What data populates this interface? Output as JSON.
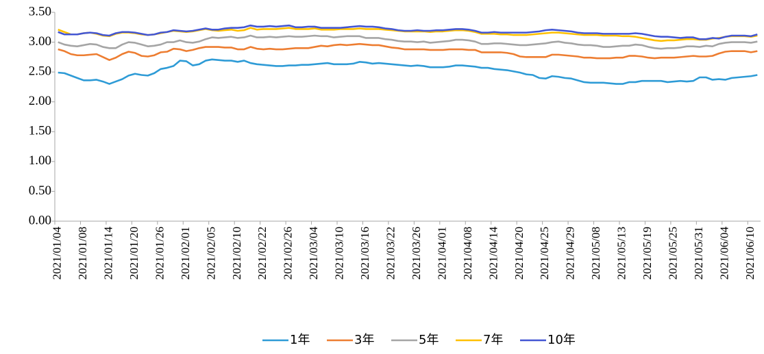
{
  "chart_data": {
    "type": "line",
    "categories": [
      "2021/01/04",
      null,
      null,
      null,
      "2021/01/08",
      null,
      null,
      null,
      "2021/01/14",
      null,
      null,
      null,
      "2021/01/20",
      null,
      null,
      null,
      "2021/01/26",
      null,
      null,
      null,
      "2021/02/01",
      null,
      null,
      null,
      "2021/02/05",
      null,
      null,
      null,
      "2021/02/10",
      null,
      null,
      null,
      "2021/02/22",
      null,
      null,
      null,
      "2021/02/26",
      null,
      null,
      null,
      "2021/03/04",
      null,
      null,
      null,
      "2021/03/10",
      null,
      null,
      null,
      "2021/03/16",
      null,
      null,
      null,
      "2021/03/22",
      null,
      null,
      null,
      "2021/03/26",
      null,
      null,
      null,
      "2021/04/01",
      null,
      null,
      null,
      "2021/04/08",
      null,
      null,
      null,
      "2021/04/14",
      null,
      null,
      null,
      "2021/04/20",
      null,
      null,
      null,
      "2021/04/25",
      null,
      null,
      null,
      "2021/04/29",
      null,
      null,
      null,
      "2021/05/08",
      null,
      null,
      null,
      "2021/05/13",
      null,
      null,
      null,
      "2021/05/19",
      null,
      null,
      null,
      "2021/05/25",
      null,
      null,
      null,
      "2021/05/31",
      null,
      null,
      null,
      "2021/06/04",
      null,
      null,
      null,
      "2021/06/10",
      null
    ],
    "series": [
      {
        "name": "1年",
        "color": "#2e9bd6",
        "values": [
          2.49,
          2.48,
          2.44,
          2.4,
          2.36,
          2.36,
          2.37,
          2.34,
          2.3,
          2.34,
          2.38,
          2.44,
          2.47,
          2.45,
          2.44,
          2.48,
          2.55,
          2.57,
          2.6,
          2.69,
          2.68,
          2.61,
          2.63,
          2.69,
          2.71,
          2.7,
          2.69,
          2.69,
          2.67,
          2.69,
          2.65,
          2.63,
          2.62,
          2.61,
          2.6,
          2.6,
          2.61,
          2.61,
          2.62,
          2.62,
          2.63,
          2.64,
          2.65,
          2.63,
          2.63,
          2.63,
          2.64,
          2.67,
          2.66,
          2.64,
          2.65,
          2.64,
          2.63,
          2.62,
          2.61,
          2.6,
          2.61,
          2.6,
          2.58,
          2.58,
          2.58,
          2.59,
          2.61,
          2.61,
          2.6,
          2.59,
          2.57,
          2.57,
          2.55,
          2.54,
          2.53,
          2.51,
          2.49,
          2.46,
          2.45,
          2.4,
          2.39,
          2.43,
          2.42,
          2.4,
          2.39,
          2.36,
          2.33,
          2.32,
          2.32,
          2.32,
          2.31,
          2.3,
          2.3,
          2.33,
          2.33,
          2.35,
          2.35,
          2.35,
          2.35,
          2.33,
          2.34,
          2.35,
          2.34,
          2.35,
          2.41,
          2.41,
          2.37,
          2.38,
          2.37,
          2.4,
          2.41,
          2.42,
          2.43,
          2.45
        ]
      },
      {
        "name": "3年",
        "color": "#ed7d31",
        "values": [
          2.88,
          2.85,
          2.8,
          2.78,
          2.78,
          2.79,
          2.8,
          2.75,
          2.7,
          2.74,
          2.8,
          2.84,
          2.82,
          2.77,
          2.76,
          2.78,
          2.83,
          2.84,
          2.89,
          2.88,
          2.85,
          2.87,
          2.9,
          2.92,
          2.92,
          2.92,
          2.91,
          2.91,
          2.88,
          2.88,
          2.92,
          2.89,
          2.88,
          2.89,
          2.88,
          2.88,
          2.89,
          2.9,
          2.9,
          2.9,
          2.92,
          2.94,
          2.93,
          2.95,
          2.96,
          2.95,
          2.96,
          2.97,
          2.96,
          2.95,
          2.95,
          2.93,
          2.91,
          2.9,
          2.88,
          2.88,
          2.88,
          2.88,
          2.87,
          2.87,
          2.87,
          2.88,
          2.88,
          2.88,
          2.87,
          2.87,
          2.83,
          2.83,
          2.83,
          2.83,
          2.82,
          2.8,
          2.76,
          2.75,
          2.75,
          2.75,
          2.75,
          2.79,
          2.79,
          2.78,
          2.77,
          2.76,
          2.74,
          2.74,
          2.73,
          2.73,
          2.73,
          2.74,
          2.74,
          2.77,
          2.77,
          2.76,
          2.74,
          2.73,
          2.74,
          2.74,
          2.74,
          2.75,
          2.76,
          2.77,
          2.76,
          2.76,
          2.77,
          2.81,
          2.84,
          2.85,
          2.85,
          2.85,
          2.83,
          2.85
        ]
      },
      {
        "name": "5年",
        "color": "#a5a5a5",
        "values": [
          3.0,
          2.96,
          2.94,
          2.93,
          2.95,
          2.97,
          2.96,
          2.92,
          2.9,
          2.9,
          2.96,
          3.0,
          2.99,
          2.96,
          2.93,
          2.94,
          2.96,
          3.0,
          3.0,
          3.03,
          3.0,
          2.99,
          3.01,
          3.05,
          3.08,
          3.07,
          3.08,
          3.09,
          3.07,
          3.08,
          3.11,
          3.08,
          3.08,
          3.09,
          3.08,
          3.09,
          3.1,
          3.09,
          3.09,
          3.1,
          3.11,
          3.1,
          3.1,
          3.08,
          3.09,
          3.1,
          3.1,
          3.1,
          3.07,
          3.07,
          3.07,
          3.05,
          3.04,
          3.02,
          3.01,
          3.01,
          3.0,
          3.01,
          2.99,
          3.0,
          3.01,
          3.02,
          3.04,
          3.04,
          3.03,
          3.01,
          2.97,
          2.97,
          2.98,
          2.98,
          2.97,
          2.96,
          2.95,
          2.95,
          2.96,
          2.97,
          2.98,
          3.0,
          3.01,
          2.99,
          2.98,
          2.96,
          2.95,
          2.95,
          2.94,
          2.92,
          2.92,
          2.93,
          2.94,
          2.94,
          2.96,
          2.95,
          2.92,
          2.9,
          2.89,
          2.9,
          2.9,
          2.91,
          2.93,
          2.93,
          2.92,
          2.94,
          2.93,
          2.97,
          2.99,
          3.0,
          3.0,
          3.0,
          2.99,
          3.01
        ]
      },
      {
        "name": "7年",
        "color": "#ffc000",
        "values": [
          3.21,
          3.17,
          3.13,
          3.13,
          3.15,
          3.16,
          3.14,
          3.11,
          3.1,
          3.14,
          3.16,
          3.16,
          3.15,
          3.13,
          3.12,
          3.13,
          3.15,
          3.17,
          3.19,
          3.18,
          3.17,
          3.18,
          3.2,
          3.22,
          3.2,
          3.19,
          3.2,
          3.21,
          3.19,
          3.2,
          3.24,
          3.21,
          3.22,
          3.22,
          3.22,
          3.23,
          3.24,
          3.22,
          3.22,
          3.22,
          3.23,
          3.21,
          3.21,
          3.21,
          3.22,
          3.22,
          3.22,
          3.23,
          3.22,
          3.22,
          3.22,
          3.21,
          3.2,
          3.19,
          3.18,
          3.18,
          3.18,
          3.18,
          3.17,
          3.18,
          3.18,
          3.19,
          3.2,
          3.2,
          3.19,
          3.17,
          3.14,
          3.14,
          3.14,
          3.13,
          3.13,
          3.12,
          3.12,
          3.12,
          3.13,
          3.14,
          3.15,
          3.16,
          3.16,
          3.15,
          3.14,
          3.13,
          3.12,
          3.12,
          3.12,
          3.11,
          3.11,
          3.11,
          3.1,
          3.1,
          3.09,
          3.07,
          3.05,
          3.03,
          3.02,
          3.03,
          3.03,
          3.04,
          3.05,
          3.05,
          3.04,
          3.04,
          3.06,
          3.07,
          3.09,
          3.1,
          3.1,
          3.1,
          3.09,
          3.11
        ]
      },
      {
        "name": "10年",
        "color": "#4356d3",
        "values": [
          3.17,
          3.13,
          3.13,
          3.13,
          3.15,
          3.16,
          3.15,
          3.12,
          3.11,
          3.15,
          3.17,
          3.17,
          3.16,
          3.14,
          3.12,
          3.13,
          3.16,
          3.17,
          3.2,
          3.19,
          3.18,
          3.19,
          3.21,
          3.23,
          3.21,
          3.21,
          3.23,
          3.24,
          3.24,
          3.25,
          3.28,
          3.26,
          3.26,
          3.27,
          3.26,
          3.27,
          3.28,
          3.25,
          3.25,
          3.26,
          3.26,
          3.24,
          3.24,
          3.24,
          3.24,
          3.25,
          3.26,
          3.27,
          3.26,
          3.26,
          3.25,
          3.23,
          3.22,
          3.2,
          3.19,
          3.19,
          3.2,
          3.19,
          3.19,
          3.2,
          3.2,
          3.21,
          3.22,
          3.22,
          3.21,
          3.19,
          3.16,
          3.16,
          3.17,
          3.16,
          3.16,
          3.16,
          3.16,
          3.16,
          3.17,
          3.18,
          3.2,
          3.21,
          3.2,
          3.19,
          3.18,
          3.16,
          3.15,
          3.15,
          3.15,
          3.14,
          3.14,
          3.14,
          3.14,
          3.14,
          3.15,
          3.14,
          3.12,
          3.1,
          3.09,
          3.09,
          3.08,
          3.07,
          3.08,
          3.08,
          3.05,
          3.05,
          3.07,
          3.06,
          3.09,
          3.11,
          3.11,
          3.11,
          3.1,
          3.13
        ]
      }
    ],
    "ylim": [
      0,
      3.5
    ],
    "yticks": [
      {
        "value": 0,
        "label": "0.00"
      },
      {
        "value": 0.5,
        "label": "0.50"
      },
      {
        "value": 1,
        "label": "1.00"
      },
      {
        "value": 1.5,
        "label": "1.50"
      },
      {
        "value": 2,
        "label": "2.00"
      },
      {
        "value": 2.5,
        "label": "2.50"
      },
      {
        "value": 3,
        "label": "3.00"
      },
      {
        "value": 3.5,
        "label": "3.50"
      }
    ],
    "grid": false,
    "legend": "bottom"
  }
}
